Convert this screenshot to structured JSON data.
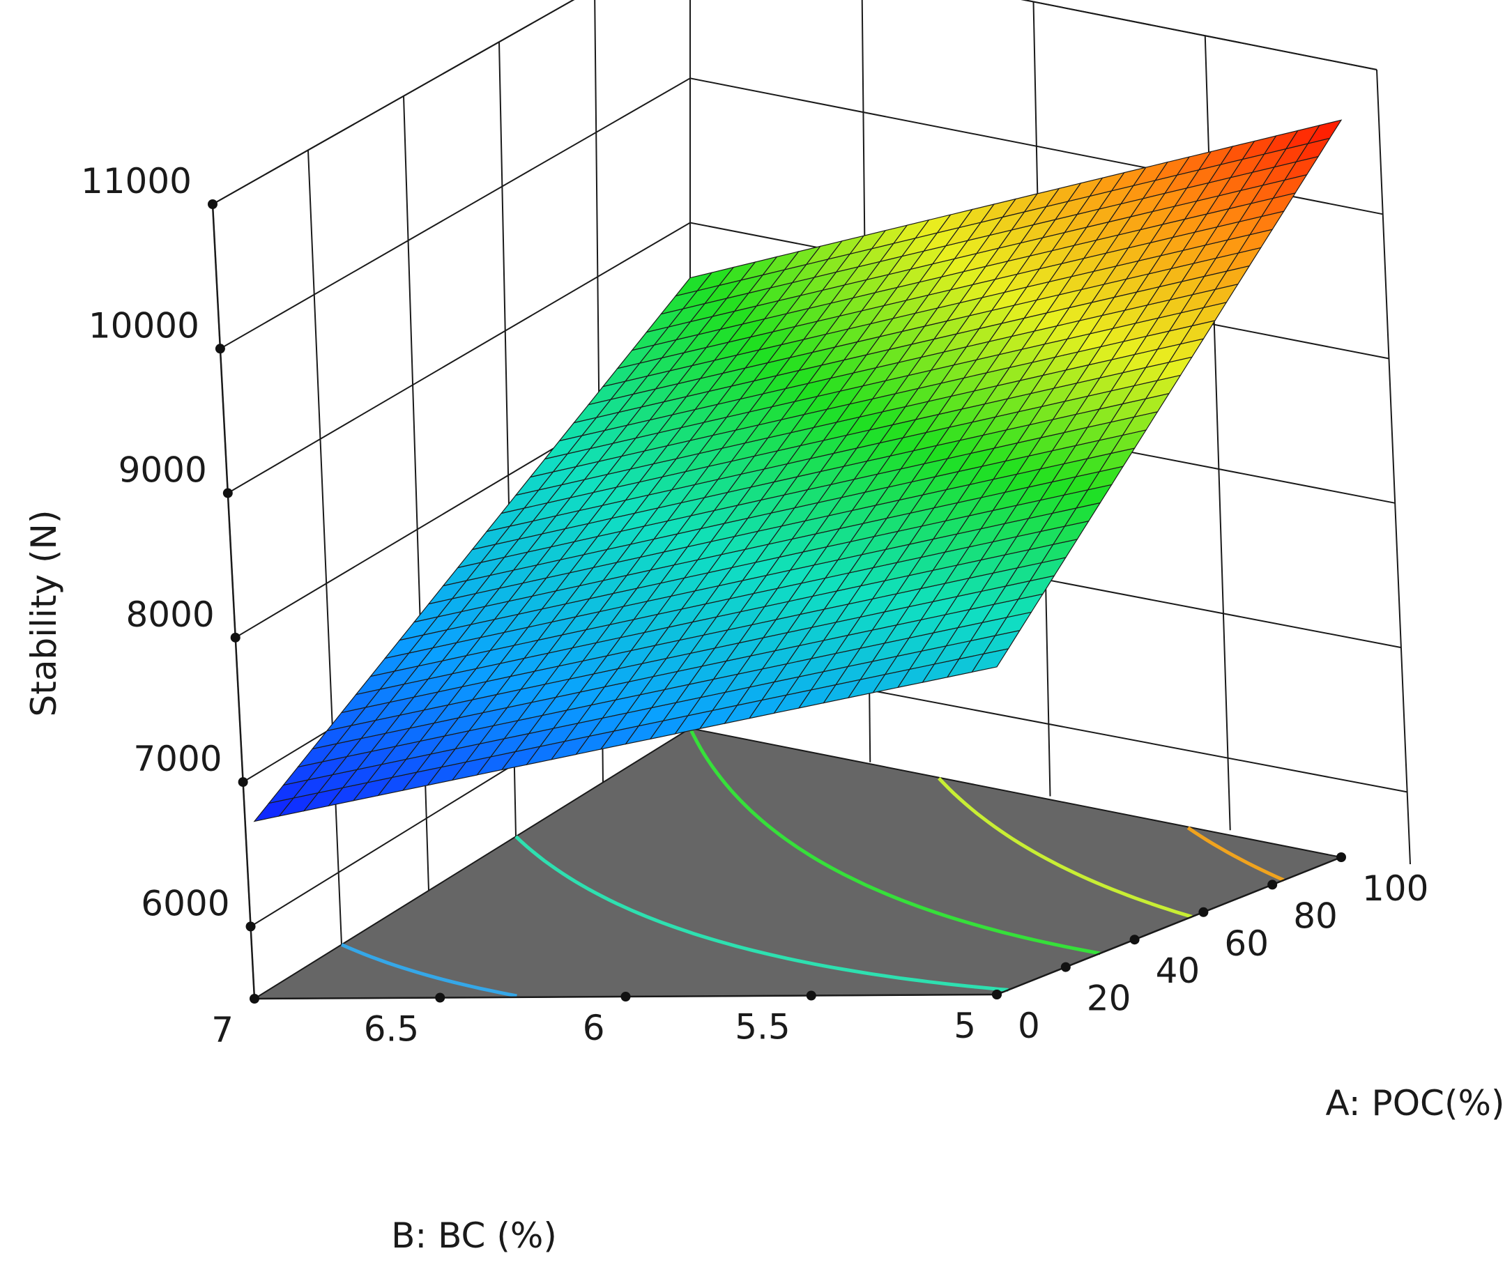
{
  "chart_data": {
    "type": "surface",
    "title": "",
    "zlabel": "Stability  (N)",
    "xlabel": "A: POC(%)",
    "ylabel": "B: BC  (%)",
    "z_ticks": [
      "6000",
      "7000",
      "8000",
      "9000",
      "10000",
      "11000"
    ],
    "a_ticks": [
      "0",
      "20",
      "40",
      "60",
      "80",
      "100"
    ],
    "b_ticks": [
      "5",
      "5.5",
      "6",
      "6.5",
      "7"
    ],
    "zlim": [
      5500,
      11000
    ],
    "a_range": [
      0,
      100
    ],
    "b_range": [
      5,
      7
    ],
    "corner_values": [
      {
        "A": 0,
        "B": 7,
        "stability": 6800
      },
      {
        "A": 0,
        "B": 5,
        "stability": 7900
      },
      {
        "A": 100,
        "B": 7,
        "stability": 8800
      },
      {
        "A": 100,
        "B": 5,
        "stability": 10900
      }
    ],
    "floor_color": "#666666",
    "contour_levels": [
      {
        "value": 7200,
        "color": "#35a7e8"
      },
      {
        "value": 8000,
        "color": "#2ee0b0"
      },
      {
        "value": 8800,
        "color": "#36e03a"
      },
      {
        "value": 9600,
        "color": "#c8ee34"
      },
      {
        "value": 10400,
        "color": "#f0a31e"
      }
    ],
    "colormap": [
      "#1020ff",
      "#0aa0ff",
      "#10e0c0",
      "#20e020",
      "#e8f020",
      "#ff9010",
      "#ff1000"
    ],
    "grid": true,
    "mesh_divisions": 30
  }
}
